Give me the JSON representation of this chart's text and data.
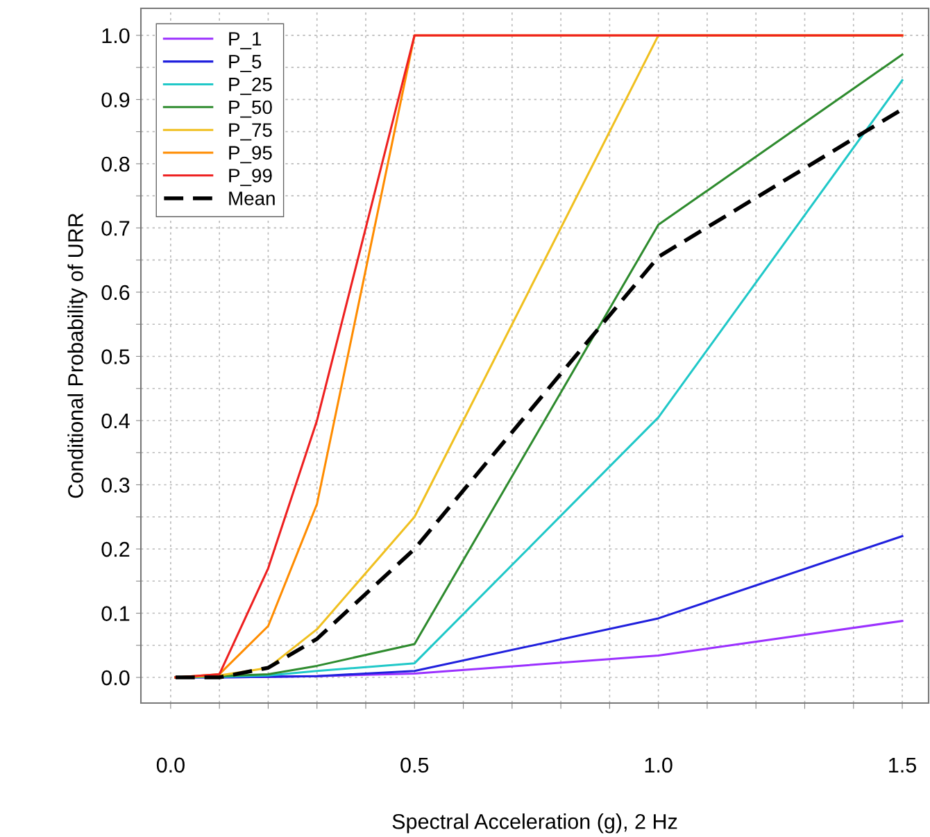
{
  "chart_data": {
    "type": "line",
    "xlabel": "Spectral Acceleration (g), 2 Hz",
    "ylabel": "Conditional Probability of URR",
    "x": [
      0.01,
      0.1,
      0.2,
      0.3,
      0.5,
      1.0,
      1.5
    ],
    "series": [
      {
        "name": "P_1",
        "color": "#9b30ff",
        "values": [
          0,
          0,
          0.001,
          0.002,
          0.006,
          0.034,
          0.088
        ]
      },
      {
        "name": "P_5",
        "color": "#2020dd",
        "values": [
          0,
          0,
          0.001,
          0.002,
          0.01,
          0.092,
          0.22
        ]
      },
      {
        "name": "P_25",
        "color": "#20c8c8",
        "values": [
          0,
          0.001,
          0.003,
          0.01,
          0.022,
          0.405,
          0.93
        ]
      },
      {
        "name": "P_50",
        "color": "#2e8b2e",
        "values": [
          0,
          0.002,
          0.005,
          0.018,
          0.052,
          0.705,
          0.97
        ]
      },
      {
        "name": "P_75",
        "color": "#f0c020",
        "values": [
          0,
          0.003,
          0.015,
          0.075,
          0.25,
          1.0,
          1.0
        ]
      },
      {
        "name": "P_95",
        "color": "#ff8c00",
        "values": [
          0,
          0.005,
          0.08,
          0.27,
          1.0,
          1.0,
          1.0
        ]
      },
      {
        "name": "P_99",
        "color": "#ee2020",
        "values": [
          0,
          0.005,
          0.17,
          0.4,
          1.0,
          1.0,
          1.0
        ]
      },
      {
        "name": "Mean",
        "color": "#000000",
        "line_style": "dashed",
        "values": [
          0,
          0,
          0.015,
          0.06,
          0.2,
          0.655,
          0.885
        ]
      }
    ],
    "xlim": [
      -0.061,
      1.554
    ],
    "ylim": [
      -0.04,
      1.042
    ],
    "xticks": [
      {
        "value": 0,
        "label": "0.0"
      },
      {
        "value": 0.1,
        "label": null
      },
      {
        "value": 0.2,
        "label": null
      },
      {
        "value": 0.3,
        "label": null
      },
      {
        "value": 0.4,
        "label": null
      },
      {
        "value": 0.5,
        "label": "0.5"
      },
      {
        "value": 0.6,
        "label": null
      },
      {
        "value": 0.7,
        "label": null
      },
      {
        "value": 0.8,
        "label": null
      },
      {
        "value": 0.9,
        "label": null
      },
      {
        "value": 1.0,
        "label": "1.0"
      },
      {
        "value": 1.1,
        "label": null
      },
      {
        "value": 1.2,
        "label": null
      },
      {
        "value": 1.3,
        "label": null
      },
      {
        "value": 1.4,
        "label": null
      },
      {
        "value": 1.5,
        "label": "1.5"
      }
    ],
    "yticks": [
      {
        "value": 0,
        "label": "0.0"
      },
      {
        "value": 0.05,
        "label": null
      },
      {
        "value": 0.1,
        "label": "0.1"
      },
      {
        "value": 0.15,
        "label": null
      },
      {
        "value": 0.2,
        "label": "0.2"
      },
      {
        "value": 0.25,
        "label": null
      },
      {
        "value": 0.3,
        "label": "0.3"
      },
      {
        "value": 0.35,
        "label": null
      },
      {
        "value": 0.4,
        "label": "0.4"
      },
      {
        "value": 0.45,
        "label": null
      },
      {
        "value": 0.5,
        "label": "0.5"
      },
      {
        "value": 0.55,
        "label": null
      },
      {
        "value": 0.6,
        "label": "0.6"
      },
      {
        "value": 0.65,
        "label": null
      },
      {
        "value": 0.7,
        "label": "0.7"
      },
      {
        "value": 0.75,
        "label": null
      },
      {
        "value": 0.8,
        "label": "0.8"
      },
      {
        "value": 0.85,
        "label": null
      },
      {
        "value": 0.9,
        "label": "0.9"
      },
      {
        "value": 0.95,
        "label": null
      },
      {
        "value": 1.0,
        "label": "1.0"
      }
    ],
    "grid": true,
    "legend": "top left",
    "line_style": "solid",
    "marker": "none"
  }
}
